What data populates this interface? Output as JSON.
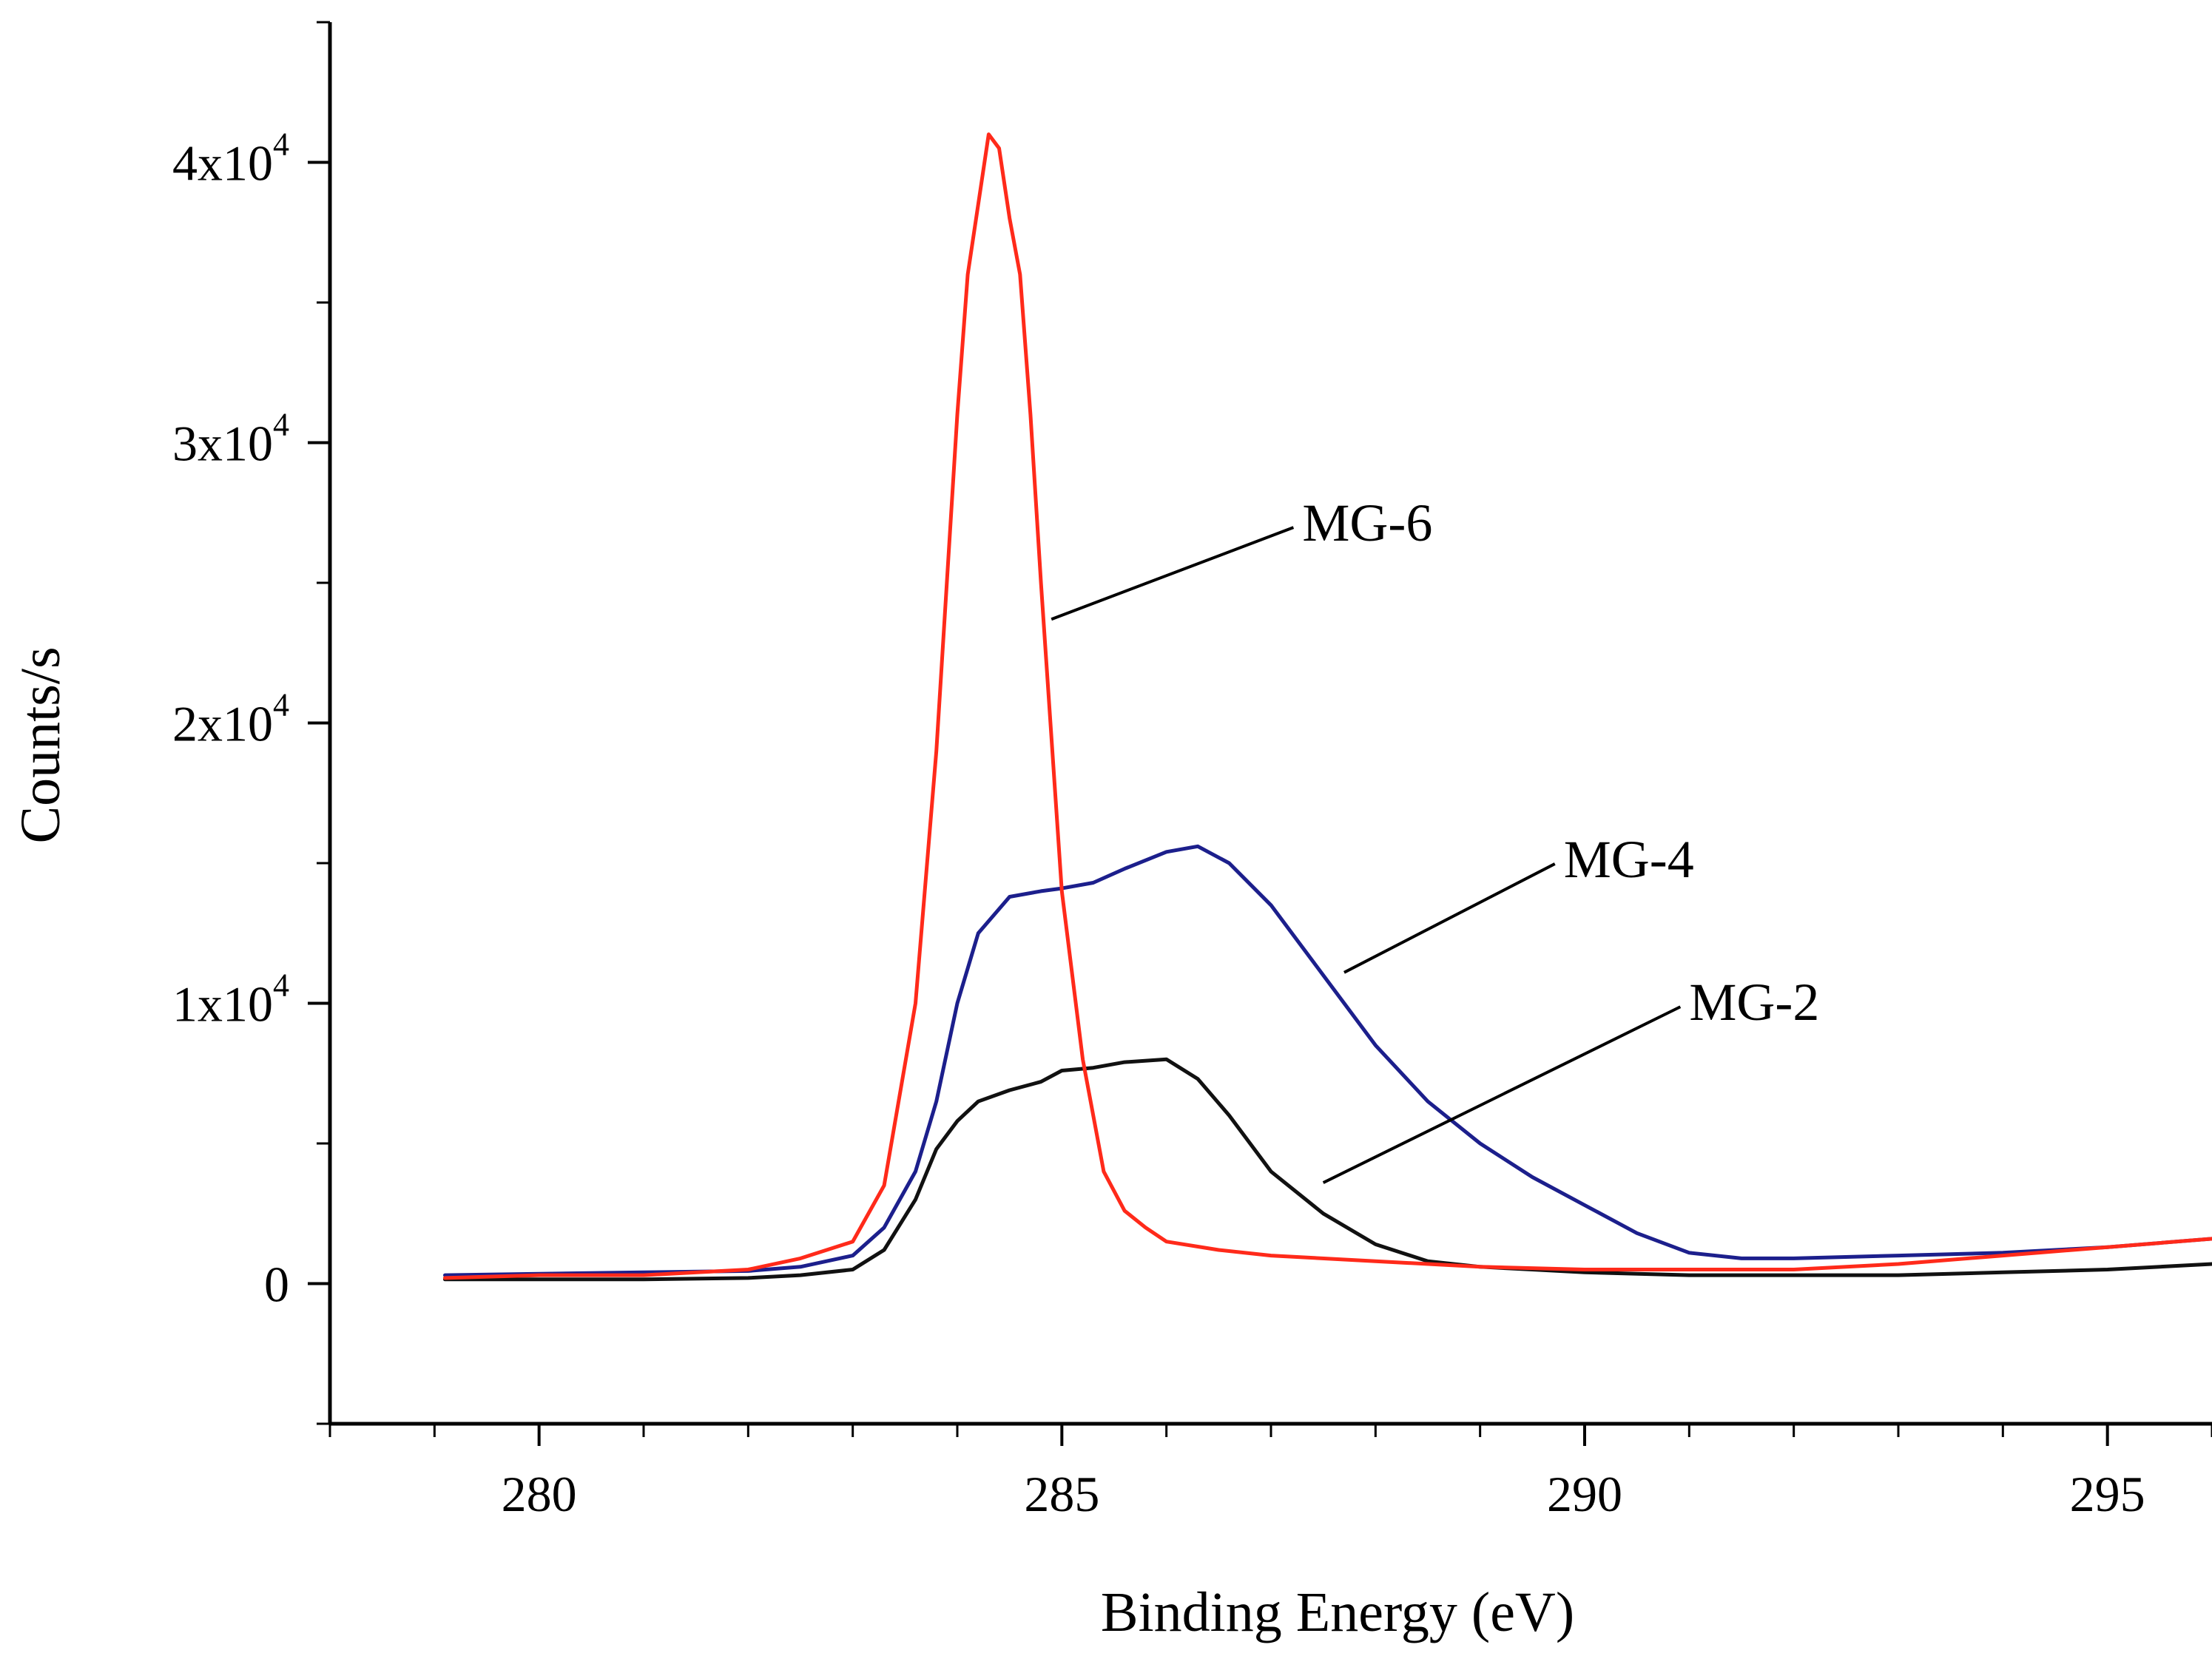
{
  "chart_data": {
    "type": "line",
    "title": "",
    "xlabel": "Binding Energy (eV)",
    "ylabel": "Counts/s",
    "xlim": [
      278,
      296
    ],
    "ylim": [
      -5000,
      45000
    ],
    "grid": false,
    "x_ticks": [
      {
        "value": 280,
        "label": "280"
      },
      {
        "value": 285,
        "label": "285"
      },
      {
        "value": 290,
        "label": "290"
      },
      {
        "value": 295,
        "label": "295"
      }
    ],
    "y_ticks": [
      {
        "value": 0,
        "label": "0",
        "exp": ""
      },
      {
        "value": 10000,
        "label": "1x10",
        "exp": "4"
      },
      {
        "value": 20000,
        "label": "2x10",
        "exp": "4"
      },
      {
        "value": 30000,
        "label": "3x10",
        "exp": "4"
      },
      {
        "value": 40000,
        "label": "4x10",
        "exp": "4"
      }
    ],
    "series": [
      {
        "name": "MG-6",
        "color": "#ff2a1a",
        "x": [
          279.1,
          280.0,
          281.0,
          282.0,
          282.5,
          283.0,
          283.3,
          283.6,
          283.8,
          284.0,
          284.1,
          284.2,
          284.3,
          284.4,
          284.5,
          284.6,
          284.7,
          284.8,
          285.0,
          285.2,
          285.4,
          285.6,
          285.8,
          286.0,
          286.5,
          287.0,
          288.0,
          289.0,
          290.0,
          291.0,
          292.0,
          293.0,
          294.0,
          295.0,
          296.0
        ],
        "values": [
          200,
          300,
          300,
          500,
          900,
          1500,
          3500,
          10000,
          19000,
          31000,
          36000,
          38500,
          41000,
          40500,
          38000,
          36000,
          31000,
          25000,
          14000,
          8000,
          4000,
          2600,
          2000,
          1500,
          1200,
          1000,
          800,
          600,
          500,
          500,
          500,
          700,
          1000,
          1300,
          1600
        ]
      },
      {
        "name": "MG-4",
        "color": "#1c1f8c",
        "x": [
          279.1,
          280.0,
          281.0,
          282.0,
          282.5,
          283.0,
          283.3,
          283.6,
          283.8,
          284.0,
          284.2,
          284.5,
          284.8,
          285.0,
          285.3,
          285.6,
          286.0,
          286.3,
          286.6,
          287.0,
          287.5,
          288.0,
          288.5,
          289.0,
          289.5,
          290.0,
          290.5,
          291.0,
          291.5,
          292.0,
          293.0,
          294.0,
          295.0,
          296.0
        ],
        "values": [
          300,
          350,
          400,
          450,
          600,
          1000,
          2000,
          4000,
          6500,
          10000,
          12500,
          13800,
          14000,
          14100,
          14300,
          14800,
          15400,
          15600,
          15000,
          13500,
          11000,
          8500,
          6500,
          5000,
          3800,
          2800,
          1800,
          1100,
          900,
          900,
          1000,
          1100,
          1300,
          1600
        ]
      },
      {
        "name": "MG-2",
        "color": "#111111",
        "x": [
          279.1,
          280.0,
          281.0,
          282.0,
          282.5,
          283.0,
          283.3,
          283.6,
          283.8,
          284.0,
          284.2,
          284.5,
          284.8,
          285.0,
          285.3,
          285.6,
          286.0,
          286.3,
          286.6,
          287.0,
          287.5,
          288.0,
          288.5,
          289.0,
          289.5,
          290.0,
          291.0,
          292.0,
          293.0,
          294.0,
          295.0,
          296.0
        ],
        "values": [
          150,
          150,
          150,
          200,
          300,
          500,
          1200,
          3000,
          4800,
          5800,
          6500,
          6900,
          7200,
          7600,
          7700,
          7900,
          8000,
          7300,
          6000,
          4000,
          2500,
          1400,
          800,
          600,
          500,
          400,
          300,
          300,
          300,
          400,
          500,
          700
        ]
      }
    ],
    "annotations": [
      {
        "text": "MG-6",
        "series": "MG-6",
        "x": 287.3,
        "y": 26500,
        "anchor_x": 284.9,
        "anchor_y": 23700
      },
      {
        "text": "MG-4",
        "series": "MG-4",
        "x": 289.8,
        "y": 14500,
        "anchor_x": 287.7,
        "anchor_y": 11100
      },
      {
        "text": "MG-2",
        "series": "MG-2",
        "x": 291.0,
        "y": 9400,
        "anchor_x": 287.5,
        "anchor_y": 3600
      }
    ]
  }
}
